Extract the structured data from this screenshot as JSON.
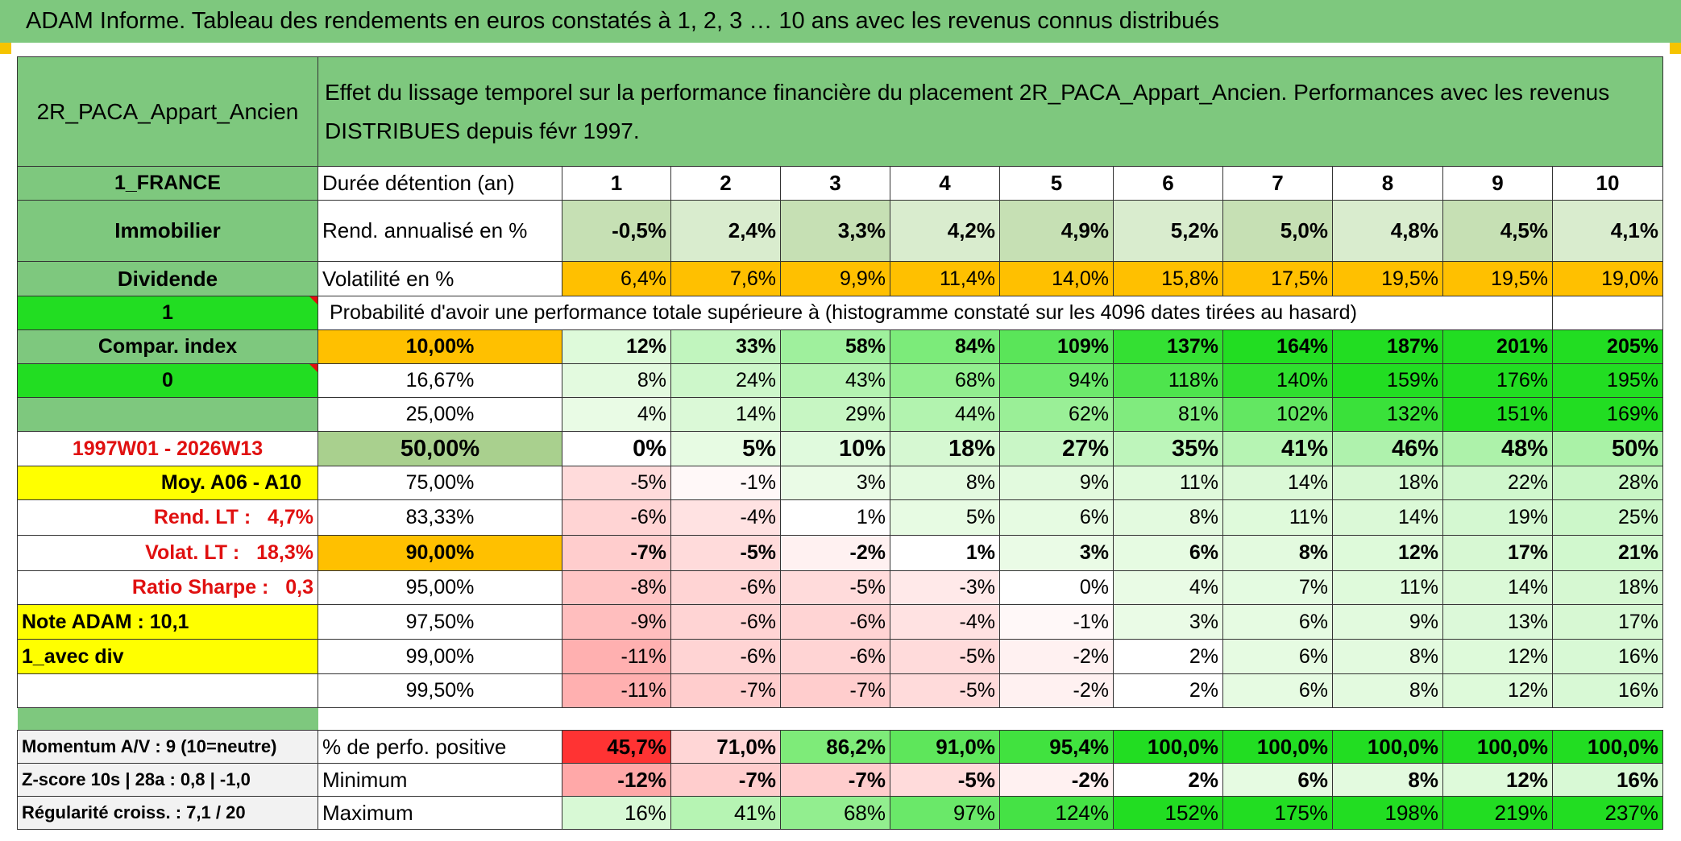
{
  "title": "ADAM Informe. Tableau des rendements en euros constatés à 1, 2, 3 … 10 ans avec les revenus connus distribués",
  "fund": "2R_PACA_Appart_Ancien",
  "description": "Effet du lissage temporel sur la performance financière du placement 2R_PACA_Appart_Ancien. Performances avec les revenus DISTRIBUES depuis févr 1997.",
  "left": {
    "country": "1_FRANCE",
    "category": "Immobilier",
    "income": "Dividende",
    "flag1": "1",
    "compar": "Compar. index",
    "flag0": "0",
    "period": "1997W01 - 2026W13",
    "moy": "Moy. A06 - A10",
    "rend_lt_label": "Rend. LT :",
    "rend_lt_value": "4,7%",
    "volat_lt_label": "Volat. LT :",
    "volat_lt_value": "18,3%",
    "sharpe_label": "Ratio Sharpe :",
    "sharpe_value": "0,3",
    "note": "Note ADAM : 10,1",
    "avec_div": "1_avec div",
    "momentum": "Momentum A/V : 9 (10=neutre)",
    "zscore": "Z-score 10s | 28a : 0,8 | -1,0",
    "regularite": "Régularité croiss. : 7,1 / 20"
  },
  "header": {
    "label": "Durée détention (an)",
    "years": [
      "1",
      "2",
      "3",
      "4",
      "5",
      "6",
      "7",
      "8",
      "9",
      "10"
    ]
  },
  "rend": {
    "label": "Rend. annualisé en %",
    "values": [
      "-0,5%",
      "2,4%",
      "3,3%",
      "4,2%",
      "4,9%",
      "5,2%",
      "5,0%",
      "4,8%",
      "4,5%",
      "4,1%"
    ]
  },
  "volat": {
    "label": "Volatilité en %",
    "values": [
      "6,4%",
      "7,6%",
      "9,9%",
      "11,4%",
      "14,0%",
      "15,8%",
      "17,5%",
      "19,5%",
      "19,5%",
      "19,0%"
    ]
  },
  "prob_title": "Probabilité d'avoir une performance totale supérieure à (histogramme constaté sur les 4096 dates tirées au hasard)",
  "quantiles": [
    {
      "label": "10,00%",
      "values": [
        "12%",
        "33%",
        "58%",
        "84%",
        "109%",
        "137%",
        "164%",
        "187%",
        "201%",
        "205%"
      ]
    },
    {
      "label": "16,67%",
      "values": [
        "8%",
        "24%",
        "43%",
        "68%",
        "94%",
        "118%",
        "140%",
        "159%",
        "176%",
        "195%"
      ]
    },
    {
      "label": "25,00%",
      "values": [
        "4%",
        "14%",
        "29%",
        "44%",
        "62%",
        "81%",
        "102%",
        "132%",
        "151%",
        "169%"
      ]
    },
    {
      "label": "50,00%",
      "values": [
        "0%",
        "5%",
        "10%",
        "18%",
        "27%",
        "35%",
        "41%",
        "46%",
        "48%",
        "50%"
      ]
    },
    {
      "label": "75,00%",
      "values": [
        "-5%",
        "-1%",
        "3%",
        "8%",
        "9%",
        "11%",
        "14%",
        "18%",
        "22%",
        "28%"
      ]
    },
    {
      "label": "83,33%",
      "values": [
        "-6%",
        "-4%",
        "1%",
        "5%",
        "6%",
        "8%",
        "11%",
        "14%",
        "19%",
        "25%"
      ]
    },
    {
      "label": "90,00%",
      "values": [
        "-7%",
        "-5%",
        "-2%",
        "1%",
        "3%",
        "6%",
        "8%",
        "12%",
        "17%",
        "21%"
      ]
    },
    {
      "label": "95,00%",
      "values": [
        "-8%",
        "-6%",
        "-5%",
        "-3%",
        "0%",
        "4%",
        "7%",
        "11%",
        "14%",
        "18%"
      ]
    },
    {
      "label": "97,50%",
      "values": [
        "-9%",
        "-6%",
        "-6%",
        "-4%",
        "-1%",
        "3%",
        "6%",
        "9%",
        "13%",
        "17%"
      ]
    },
    {
      "label": "99,00%",
      "values": [
        "-11%",
        "-6%",
        "-6%",
        "-5%",
        "-2%",
        "2%",
        "6%",
        "8%",
        "12%",
        "16%"
      ]
    },
    {
      "label": "99,50%",
      "values": [
        "-11%",
        "-7%",
        "-7%",
        "-5%",
        "-2%",
        "2%",
        "6%",
        "8%",
        "12%",
        "16%"
      ]
    }
  ],
  "bottom": [
    {
      "label": "% de perfo. positive",
      "values": [
        "45,7%",
        "71,0%",
        "86,2%",
        "91,0%",
        "95,4%",
        "100,0%",
        "100,0%",
        "100,0%",
        "100,0%",
        "100,0%"
      ]
    },
    {
      "label": "Minimum",
      "values": [
        "-12%",
        "-7%",
        "-7%",
        "-5%",
        "-2%",
        "2%",
        "6%",
        "8%",
        "12%",
        "16%"
      ]
    },
    {
      "label": "Maximum",
      "values": [
        "16%",
        "41%",
        "68%",
        "97%",
        "124%",
        "152%",
        "175%",
        "198%",
        "219%",
        "237%"
      ]
    }
  ]
}
